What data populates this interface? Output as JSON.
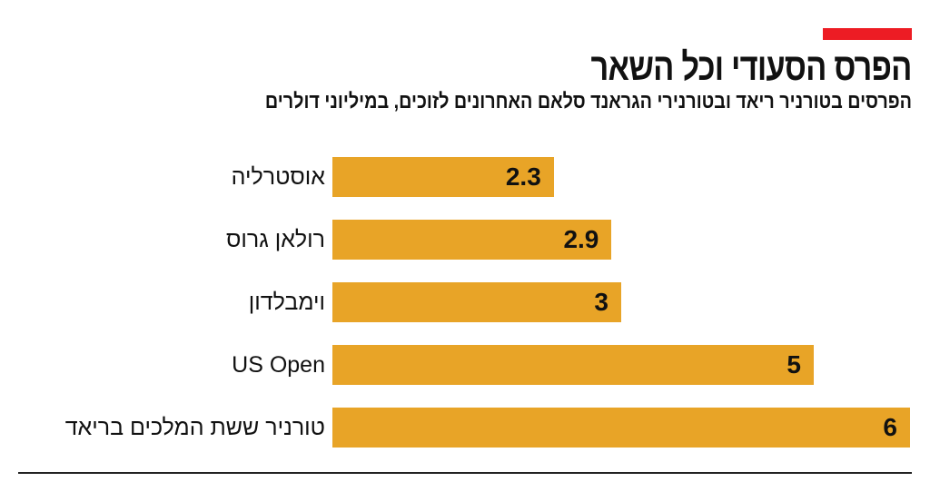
{
  "colors": {
    "accent": "#ED1C24",
    "bar": "#E8A427"
  },
  "chart_data": {
    "type": "bar",
    "orientation": "horizontal",
    "title": "הפרס הסעודי וכל השאר",
    "subtitle": "הפרסים בטורניר ריאד ובטורנירי הגראנד סלאם האחרונים לזוכים, במיליוני דולרים",
    "categories": [
      "אוסטרליה",
      "רולאן גרוס",
      "וימבלדון",
      "US Open",
      "טורניר ששת המלכים בריאד"
    ],
    "values": [
      2.3,
      2.9,
      3,
      5,
      6
    ],
    "value_labels": [
      "2.3",
      "2.9",
      "3",
      "5",
      "6"
    ],
    "xlim": [
      0,
      6
    ]
  }
}
